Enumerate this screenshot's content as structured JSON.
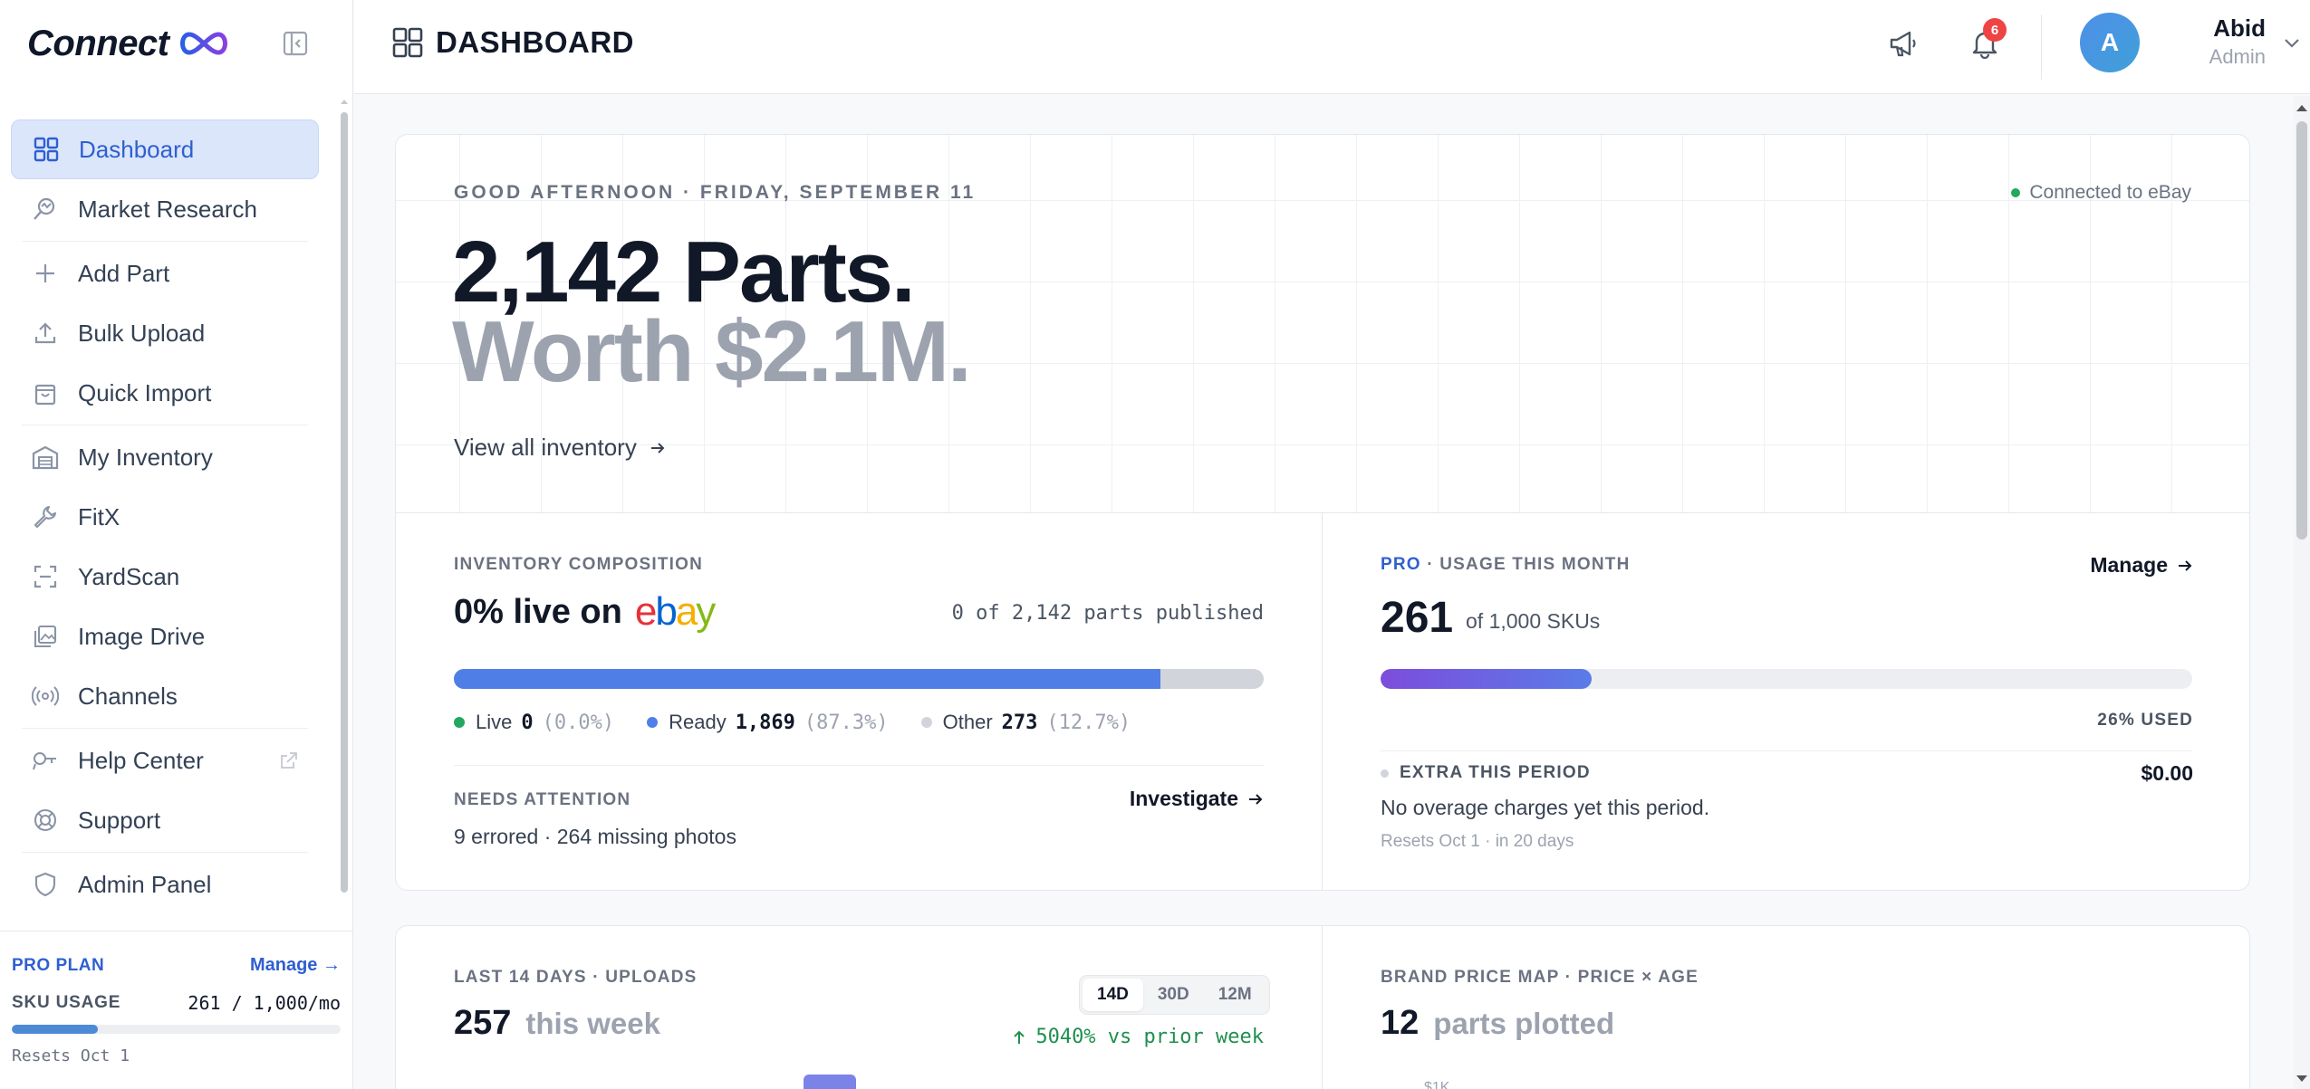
{
  "brand": {
    "name": "Connect"
  },
  "sidebar": {
    "items": [
      {
        "label": "Dashboard",
        "icon": "dashboard-icon",
        "active": true
      },
      {
        "label": "Market Research",
        "icon": "market-research-icon"
      },
      {
        "label": "Add Part",
        "icon": "plus-icon"
      },
      {
        "label": "Bulk Upload",
        "icon": "upload-icon"
      },
      {
        "label": "Quick Import",
        "icon": "bag-icon"
      },
      {
        "label": "My Inventory",
        "icon": "warehouse-icon"
      },
      {
        "label": "FitX",
        "icon": "wrench-icon"
      },
      {
        "label": "YardScan",
        "icon": "scan-icon"
      },
      {
        "label": "Image Drive",
        "icon": "image-icon"
      },
      {
        "label": "Channels",
        "icon": "broadcast-icon"
      },
      {
        "label": "Help Center",
        "icon": "help-icon",
        "external": true
      },
      {
        "label": "Support",
        "icon": "lifebuoy-icon"
      },
      {
        "label": "Admin Panel",
        "icon": "shield-icon"
      }
    ],
    "plan": {
      "title": "PRO PLAN",
      "manage": "Manage →",
      "sku_label": "SKU USAGE",
      "sku_value": "261 / 1,000/mo",
      "usage_fraction": 0.261,
      "reset": "Resets Oct 1"
    }
  },
  "header": {
    "title": "DASHBOARD",
    "notifications_count": "6",
    "user": {
      "initial": "A",
      "name": "Abid",
      "role": "Admin"
    }
  },
  "hero": {
    "greeting": "GOOD AFTERNOON · FRIDAY, SEPTEMBER 11",
    "connection": "Connected to eBay",
    "headline_line1": "2,142 Parts.",
    "headline_line2": "Worth $2.1M.",
    "view_all": "View all inventory"
  },
  "composition": {
    "label": "INVENTORY COMPOSITION",
    "headline": "0% live on",
    "ebay_letters": [
      "e",
      "b",
      "a",
      "y"
    ],
    "published": "0 of 2,142 parts published",
    "live_fraction": 0.0,
    "ready_fraction": 0.873,
    "other_fraction": 0.127,
    "legend": [
      {
        "name": "Live",
        "value": "0",
        "pct": "(0.0%)",
        "color": "#22a861"
      },
      {
        "name": "Ready",
        "value": "1,869",
        "pct": "(87.3%)",
        "color": "#4f7fe6"
      },
      {
        "name": "Other",
        "value": "273",
        "pct": "(12.7%)",
        "color": "#d1d5db"
      }
    ],
    "attention_label": "NEEDS ATTENTION",
    "attention_text": "9 errored · 264 missing photos",
    "investigate": "Investigate"
  },
  "usage": {
    "plan": "PRO",
    "label": " · USAGE THIS MONTH",
    "manage": "Manage",
    "value": "261",
    "of": "of 1,000 SKUs",
    "used_fraction": 0.26,
    "used_text": "26% USED",
    "extra_label": "EXTRA THIS PERIOD",
    "extra_value": "$0.00",
    "extra_text": "No overage charges yet this period.",
    "reset": "Resets Oct 1 · in 20 days"
  },
  "uploads": {
    "label": "LAST 14 DAYS · UPLOADS",
    "value": "257",
    "sub": "this week",
    "ranges": [
      "14D",
      "30D",
      "12M"
    ],
    "active_range": "14D",
    "change": "5040% vs prior week"
  },
  "price_map": {
    "label": "BRAND PRICE MAP · PRICE × AGE",
    "value": "12",
    "sub": "parts plotted",
    "axis_peek": "$1K"
  },
  "colors": {
    "accent": "#2f5fd0",
    "active_bg": "#dbe6fb",
    "live": "#22a861",
    "ready": "#4f7fe6",
    "usage_start": "#7c4ddc",
    "badge": "#ef4444"
  }
}
